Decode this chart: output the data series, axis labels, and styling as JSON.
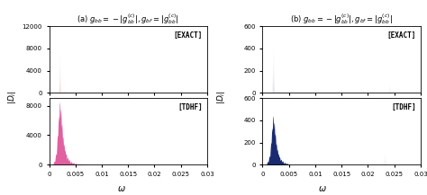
{
  "panel_a_title": "(a) $g_{bb} = -|g_{bb}^{(c)}|, g_{bf} = |g_{bb}^{(c)}|$",
  "panel_b_title": "(b) $g_{bb} = -|g_{bb}^{(c)}|, g_{bf} = |g_{bb}^{(c)}|$",
  "xlabel": "$\\omega$",
  "ylabel_a": "$|D_i|$",
  "ylabel_b": "$|D_i|$",
  "xlim": [
    0,
    0.03
  ],
  "xticks": [
    0,
    0.005,
    0.01,
    0.015,
    0.02,
    0.025,
    0.03
  ],
  "xticklabels": [
    "0",
    "0.005",
    "0.01",
    "0.015",
    "0.02",
    "0.025",
    "0.03"
  ],
  "panel_a_exact_ylim": [
    0,
    12000
  ],
  "panel_a_exact_yticks": [
    0,
    4000,
    8000,
    12000
  ],
  "panel_a_tdhf_ylim": [
    0,
    9000
  ],
  "panel_a_tdhf_yticks": [
    0,
    4000,
    8000
  ],
  "panel_b_ylim": [
    0,
    600
  ],
  "panel_b_yticks": [
    0,
    200,
    400,
    600
  ],
  "exact_label": "[EXACT]",
  "tdhf_label": "[TDHF]",
  "color_a_exact": "#cc0000",
  "color_a_tdhf": "#e060a0",
  "color_b": "#1a2a70"
}
